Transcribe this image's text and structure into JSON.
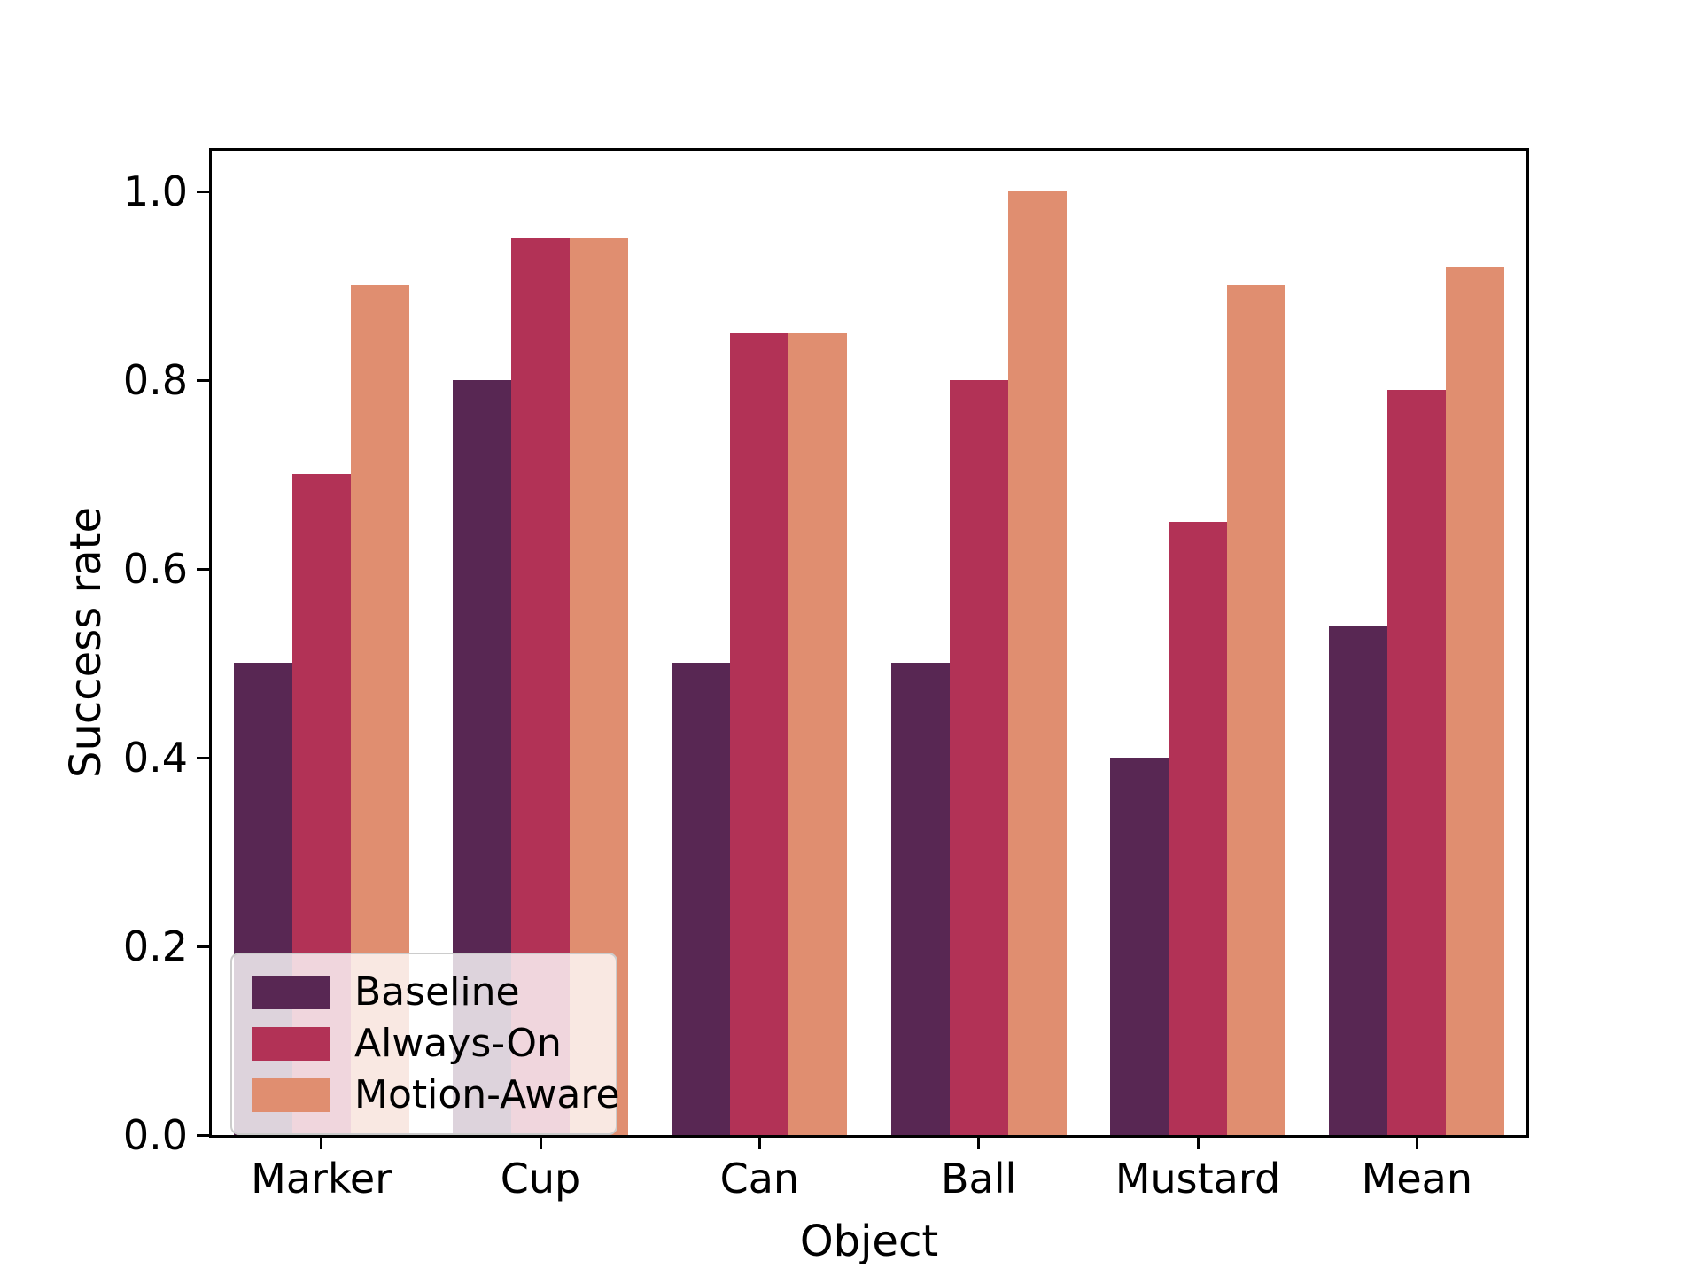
{
  "chart_data": {
    "type": "bar",
    "title": "",
    "xlabel": "Object",
    "ylabel": "Success rate",
    "categories": [
      "Marker",
      "Cup",
      "Can",
      "Ball",
      "Mustard",
      "Mean"
    ],
    "series": [
      {
        "name": "Baseline",
        "color": "#582753",
        "values": [
          0.5,
          0.8,
          0.5,
          0.5,
          0.4,
          0.54
        ]
      },
      {
        "name": "Always-On",
        "color": "#b23256",
        "values": [
          0.7,
          0.95,
          0.85,
          0.8,
          0.65,
          0.79
        ]
      },
      {
        "name": "Motion-Aware",
        "color": "#e08e70",
        "values": [
          0.9,
          0.95,
          0.85,
          1.0,
          0.9,
          0.92
        ]
      }
    ],
    "ylim": [
      0.0,
      1.043
    ],
    "yticks": [
      0.0,
      0.2,
      0.4,
      0.6,
      0.8,
      1.0
    ],
    "ytick_labels": [
      "0.0",
      "0.2",
      "0.4",
      "0.6",
      "0.8",
      "1.0"
    ],
    "grid": false,
    "legend": {
      "position": "lower-left",
      "entries": [
        "Baseline",
        "Always-On",
        "Motion-Aware"
      ]
    },
    "colors": {
      "axis": "#000000",
      "background": "#ffffff",
      "legend_border": "#cccccc"
    }
  }
}
